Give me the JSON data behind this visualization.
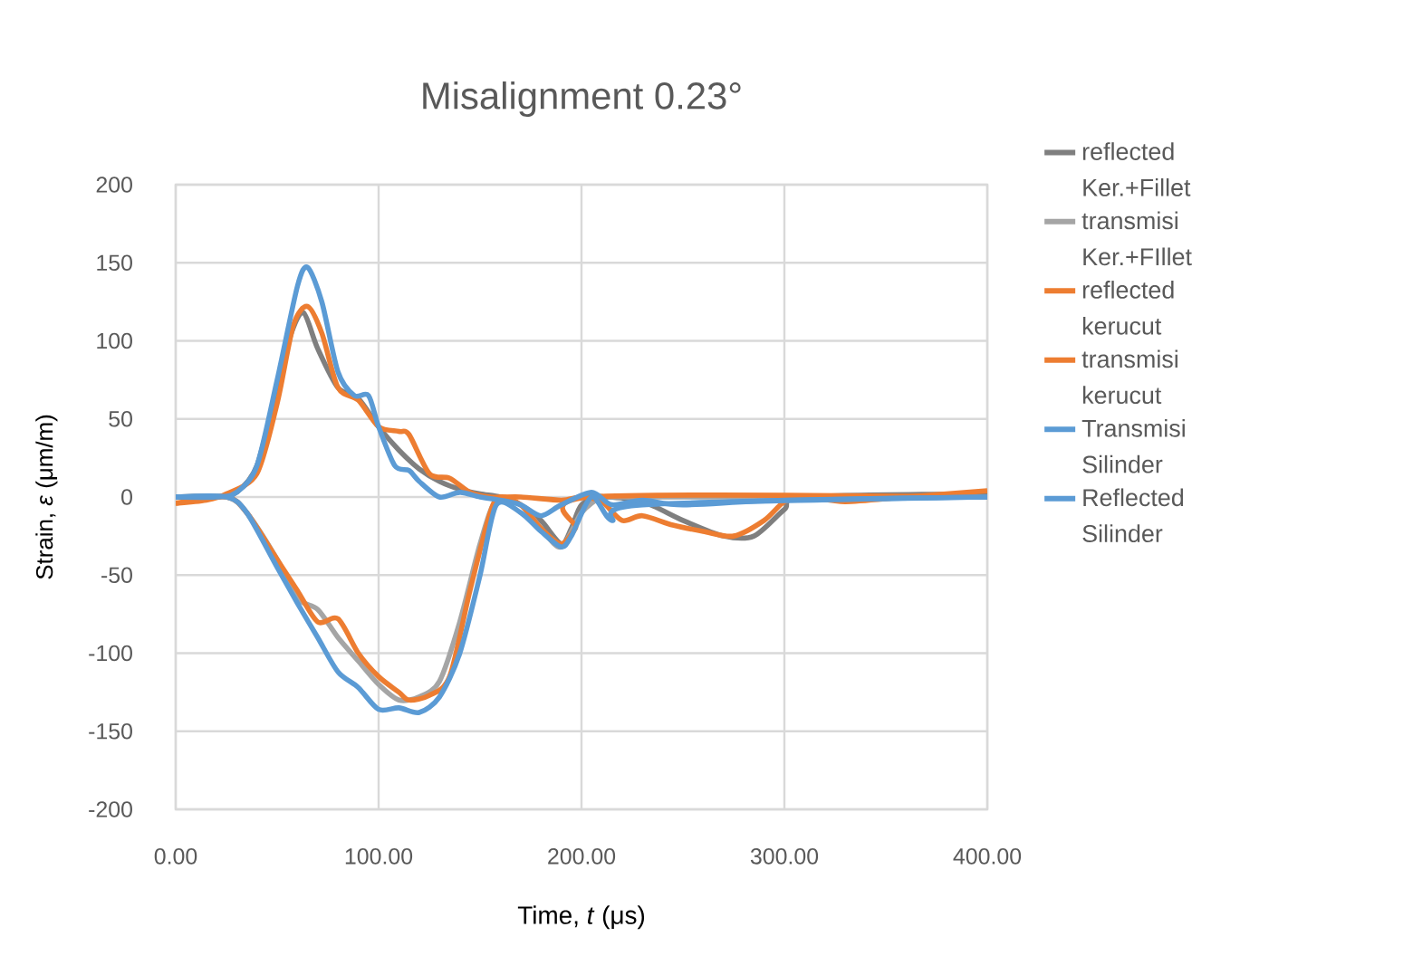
{
  "chart_data": {
    "type": "line",
    "title": "Misalignment 0.23°",
    "xlabel": "Time, *t* (μs)",
    "ylabel": "Strain, *ε* (μm/m)",
    "xlim": [
      0,
      400
    ],
    "ylim": [
      -200,
      200
    ],
    "xticks": [
      {
        "value": 0,
        "label": "0.00"
      },
      {
        "value": 100,
        "label": "100.00"
      },
      {
        "value": 200,
        "label": "200.00"
      },
      {
        "value": 300,
        "label": "300.00"
      },
      {
        "value": 400,
        "label": "400.00"
      }
    ],
    "yticks": [
      -200,
      -150,
      -100,
      -50,
      0,
      50,
      100,
      150,
      200
    ],
    "grid": true,
    "legend": "right",
    "marker": "none",
    "line_style": "solid",
    "series": [
      {
        "name": "reflected Ker.+Fillet",
        "color": "#7f7f7f",
        "x": [
          0,
          20,
          30,
          40,
          50,
          57,
          63,
          70,
          80,
          90,
          100,
          110,
          120,
          130,
          140,
          150,
          160,
          170,
          180,
          190,
          195,
          200,
          210,
          230,
          250,
          270,
          285,
          300,
          310,
          400
        ],
        "values": [
          0,
          0,
          3,
          20,
          70,
          105,
          118,
          95,
          70,
          63,
          45,
          30,
          18,
          10,
          5,
          2,
          0,
          -5,
          -15,
          -30,
          -20,
          -5,
          0,
          -3,
          -15,
          -25,
          -25,
          -8,
          0,
          2
        ]
      },
      {
        "name": "transmisi Ker.+FIllet",
        "color": "#a5a5a5",
        "x": [
          0,
          25,
          35,
          50,
          60,
          70,
          80,
          90,
          100,
          110,
          120,
          130,
          140,
          150,
          158,
          170,
          180,
          190,
          200,
          210,
          220,
          400
        ],
        "values": [
          0,
          0,
          -10,
          -40,
          -65,
          -72,
          -90,
          -105,
          -120,
          -130,
          -128,
          -118,
          -80,
          -30,
          -2,
          -5,
          -20,
          -32,
          -10,
          0,
          0,
          0
        ]
      },
      {
        "name": "reflected kerucut",
        "color": "#ed7d31",
        "x": [
          0,
          15,
          25,
          40,
          50,
          58,
          65,
          72,
          80,
          90,
          100,
          110,
          115,
          125,
          135,
          145,
          155,
          170,
          190,
          200,
          210,
          220,
          230,
          245,
          260,
          275,
          290,
          300,
          310,
          330,
          360,
          400
        ],
        "values": [
          -4,
          -2,
          2,
          15,
          60,
          110,
          122,
          105,
          70,
          62,
          45,
          42,
          40,
          15,
          12,
          3,
          0,
          0,
          -2,
          0,
          -3,
          -15,
          -12,
          -18,
          -22,
          -25,
          -15,
          -3,
          0,
          -3,
          0,
          4
        ]
      },
      {
        "name": "transmisi kerucut",
        "color": "#ed7d31",
        "x": [
          0,
          25,
          35,
          50,
          60,
          70,
          80,
          90,
          100,
          110,
          115,
          125,
          135,
          145,
          155,
          160,
          170,
          180,
          190,
          197,
          205,
          400
        ],
        "values": [
          -4,
          0,
          -10,
          -40,
          -60,
          -80,
          -78,
          -100,
          -115,
          -125,
          -130,
          -127,
          -115,
          -60,
          -10,
          0,
          -5,
          -20,
          -30,
          -20,
          0,
          0
        ]
      },
      {
        "name": "Transmisi Silinder",
        "color": "#5b9bd5",
        "x": [
          0,
          20,
          30,
          40,
          50,
          60,
          65,
          72,
          80,
          88,
          95,
          100,
          108,
          115,
          120,
          130,
          140,
          150,
          160,
          170,
          180,
          190,
          205,
          215,
          230,
          250,
          300,
          400
        ],
        "values": [
          0,
          0,
          3,
          20,
          75,
          135,
          147,
          125,
          80,
          65,
          65,
          45,
          20,
          17,
          10,
          0,
          3,
          0,
          -2,
          -5,
          -12,
          -5,
          3,
          -5,
          -2,
          -5,
          -2,
          0
        ]
      },
      {
        "name": "Reflected Silinder",
        "color": "#5b9bd5",
        "x": [
          0,
          25,
          35,
          50,
          60,
          70,
          80,
          90,
          100,
          110,
          120,
          130,
          140,
          150,
          158,
          170,
          180,
          190,
          195,
          205,
          215,
          230,
          400
        ],
        "values": [
          0,
          0,
          -10,
          -45,
          -68,
          -90,
          -112,
          -122,
          -136,
          -135,
          -138,
          -128,
          -100,
          -50,
          -5,
          -10,
          -22,
          -32,
          -25,
          0,
          -15,
          -5,
          0
        ]
      }
    ]
  }
}
